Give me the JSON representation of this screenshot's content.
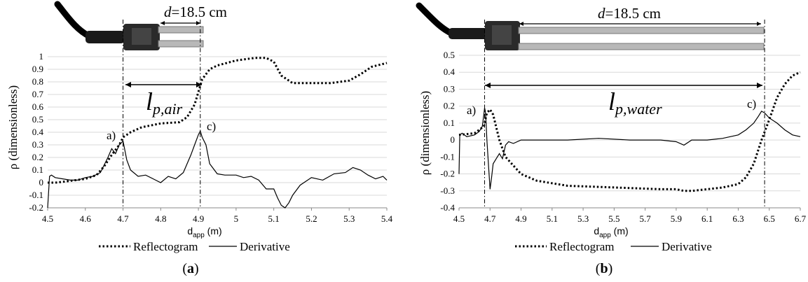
{
  "chart_data": [
    {
      "type": "line",
      "caption": "(a)",
      "xlabel": "d",
      "xlabel_sub": "app",
      "xlabel_unit": " (m)",
      "ylabel": "ρ (dimensionless)",
      "xlim": [
        4.5,
        5.4
      ],
      "ylim": [
        -0.2,
        1.0
      ],
      "x_ticks": [
        "4.5",
        "4.6",
        "4.7",
        "4.8",
        "4.9",
        "5",
        "5.1",
        "5.2",
        "5.3",
        "5.4"
      ],
      "y_ticks": [
        "-0.2",
        "-0.1",
        "0",
        "0.1",
        "0.2",
        "0.3",
        "0.4",
        "0.5",
        "0.6",
        "0.7",
        "0.8",
        "0.9",
        "1"
      ],
      "grid": true,
      "legend": "bottom",
      "series": [
        {
          "name": "Reflectogram",
          "style": "dotted",
          "x": [
            4.5,
            4.52,
            4.55,
            4.6,
            4.63,
            4.65,
            4.67,
            4.69,
            4.7,
            4.72,
            4.75,
            4.8,
            4.85,
            4.87,
            4.89,
            4.9,
            4.91,
            4.93,
            4.95,
            5.0,
            5.05,
            5.08,
            5.1,
            5.12,
            5.15,
            5.2,
            5.25,
            5.3,
            5.33,
            5.36,
            5.4
          ],
          "y": [
            0.0,
            0.0,
            0.01,
            0.03,
            0.06,
            0.13,
            0.22,
            0.3,
            0.36,
            0.4,
            0.44,
            0.47,
            0.48,
            0.52,
            0.62,
            0.72,
            0.82,
            0.9,
            0.93,
            0.97,
            0.99,
            0.99,
            0.96,
            0.85,
            0.79,
            0.79,
            0.79,
            0.81,
            0.86,
            0.92,
            0.95
          ]
        },
        {
          "name": "Derivative",
          "style": "solid",
          "x": [
            4.5,
            4.505,
            4.51,
            4.52,
            4.54,
            4.56,
            4.58,
            4.6,
            4.62,
            4.64,
            4.66,
            4.67,
            4.68,
            4.69,
            4.7,
            4.71,
            4.72,
            4.74,
            4.76,
            4.78,
            4.8,
            4.82,
            4.84,
            4.86,
            4.87,
            4.88,
            4.89,
            4.9,
            4.905,
            4.91,
            4.92,
            4.93,
            4.95,
            4.97,
            5.0,
            5.02,
            5.04,
            5.06,
            5.08,
            5.1,
            5.11,
            5.12,
            5.13,
            5.14,
            5.15,
            5.17,
            5.2,
            5.23,
            5.26,
            5.29,
            5.31,
            5.33,
            5.35,
            5.37,
            5.39,
            5.4
          ],
          "y": [
            -0.2,
            0.05,
            0.06,
            0.04,
            0.03,
            0.02,
            0.02,
            0.04,
            0.05,
            0.08,
            0.2,
            0.27,
            0.23,
            0.3,
            0.33,
            0.18,
            0.1,
            0.05,
            0.06,
            0.03,
            0.0,
            0.05,
            0.03,
            0.08,
            0.15,
            0.22,
            0.3,
            0.38,
            0.41,
            0.36,
            0.3,
            0.15,
            0.07,
            0.06,
            0.06,
            0.04,
            0.05,
            0.02,
            -0.05,
            -0.05,
            -0.12,
            -0.18,
            -0.2,
            -0.16,
            -0.1,
            -0.02,
            0.04,
            0.02,
            0.07,
            0.08,
            0.12,
            0.1,
            0.06,
            0.03,
            0.05,
            0.02
          ]
        }
      ],
      "annotations": {
        "a_label": "a)",
        "c_label": "c)",
        "a_x": 4.7,
        "c_x": 4.905,
        "d_prefix": "d",
        "d_value": "=18.5 cm",
        "lp_main": "l",
        "lp_sub": "p,air"
      }
    },
    {
      "type": "line",
      "caption": "(b)",
      "xlabel": "d",
      "xlabel_sub": "app",
      "xlabel_unit": " (m)",
      "ylabel": "ρ (dimensionless)",
      "xlim": [
        4.5,
        6.7
      ],
      "ylim": [
        -0.4,
        0.5
      ],
      "x_ticks": [
        "4.5",
        "4.7",
        "4.9",
        "5.1",
        "5.3",
        "5.5",
        "5.7",
        "5.9",
        "6.1",
        "6.3",
        "6.5",
        "6.7"
      ],
      "y_ticks": [
        "-0.4",
        "-0.3",
        "-0.2",
        "-0.1",
        "0",
        "0.1",
        "0.2",
        "0.3",
        "0.4",
        "0.5"
      ],
      "grid": true,
      "legend": "bottom",
      "series": [
        {
          "name": "Reflectogram",
          "style": "dotted",
          "x": [
            4.5,
            4.6,
            4.66,
            4.68,
            4.7,
            4.72,
            4.76,
            4.8,
            4.9,
            5.0,
            5.2,
            5.5,
            5.8,
            5.9,
            5.95,
            6.0,
            6.1,
            6.2,
            6.3,
            6.35,
            6.4,
            6.45,
            6.5,
            6.55,
            6.6,
            6.65,
            6.7
          ],
          "y": [
            0.03,
            0.04,
            0.08,
            0.16,
            0.18,
            0.15,
            0.0,
            -0.1,
            -0.2,
            -0.24,
            -0.27,
            -0.28,
            -0.29,
            -0.29,
            -0.3,
            -0.3,
            -0.29,
            -0.28,
            -0.26,
            -0.22,
            -0.14,
            0.0,
            0.12,
            0.25,
            0.33,
            0.38,
            0.4
          ]
        },
        {
          "name": "Derivative",
          "style": "solid",
          "x": [
            4.5,
            4.505,
            4.52,
            4.55,
            4.6,
            4.63,
            4.65,
            4.66,
            4.665,
            4.67,
            4.675,
            4.68,
            4.69,
            4.7,
            4.71,
            4.72,
            4.74,
            4.76,
            4.78,
            4.8,
            4.82,
            4.85,
            4.9,
            5.0,
            5.2,
            5.4,
            5.6,
            5.8,
            5.9,
            5.95,
            6.0,
            6.1,
            6.2,
            6.3,
            6.35,
            6.4,
            6.43,
            6.45,
            6.47,
            6.5,
            6.55,
            6.6,
            6.65,
            6.7
          ],
          "y": [
            -0.2,
            0.03,
            0.04,
            0.02,
            0.03,
            0.05,
            0.08,
            0.15,
            0.19,
            0.17,
            0.1,
            0.0,
            -0.15,
            -0.29,
            -0.22,
            -0.14,
            -0.11,
            -0.08,
            -0.11,
            -0.03,
            -0.01,
            -0.02,
            0.0,
            0.0,
            0.0,
            0.01,
            0.0,
            0.0,
            -0.01,
            -0.03,
            0.0,
            0.0,
            0.01,
            0.03,
            0.06,
            0.1,
            0.14,
            0.17,
            0.16,
            0.13,
            0.1,
            0.06,
            0.03,
            0.02
          ]
        }
      ],
      "annotations": {
        "a_label": "a)",
        "c_label": "c)",
        "a_x": 4.665,
        "c_x": 6.47,
        "d_prefix": "d",
        "d_value": "=18.5 cm",
        "lp_main": "l",
        "lp_sub": "p,water"
      }
    }
  ]
}
